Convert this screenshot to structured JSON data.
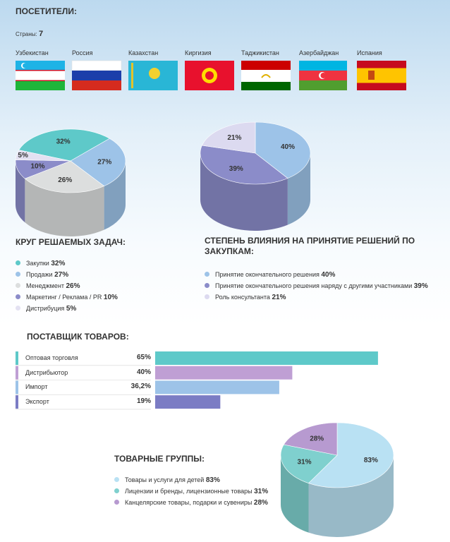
{
  "visitors": {
    "title": "ПОСЕТИТЕЛИ:",
    "countries_label": "Страны:",
    "countries_count": 7,
    "countries": [
      "Узбекистан",
      "Россия",
      "Казахстан",
      "Киргизия",
      "Таджикистан",
      "Азербайджан",
      "Испания"
    ]
  },
  "chart_data": [
    {
      "type": "pie",
      "title": "КРУГ РЕШАЕМЫХ ЗАДАЧ:",
      "categories": [
        "Закупки",
        "Продажи",
        "Менеджмент",
        "Маркетинг / Реклама / PR",
        "Дистрибуция"
      ],
      "values": [
        32,
        27,
        26,
        10,
        5
      ],
      "value_labels": [
        "32%",
        "27%",
        "26%",
        "10%",
        "5%"
      ],
      "colors": [
        "#5ec9c9",
        "#9dc3e8",
        "#dcdede",
        "#8b8cc9",
        "#e3e1f2"
      ]
    },
    {
      "type": "pie",
      "title": "СТЕПЕНЬ ВЛИЯНИЯ НА ПРИНЯТИЕ РЕШЕНИЙ ПО ЗАКУПКАМ:",
      "categories": [
        "Принятие окончательного решения",
        "Принятие окончательного решения наряду с другими участниками",
        "Роль консультанта"
      ],
      "values": [
        40,
        39,
        21
      ],
      "value_labels": [
        "40%",
        "39%",
        "21%"
      ],
      "colors": [
        "#9dc3e8",
        "#8b8cc9",
        "#dcdaf0"
      ]
    },
    {
      "type": "bar",
      "title": "ПОСТАВЩИК ТОВАРОВ:",
      "categories": [
        "Оптовая торговля",
        "Дистрибьютор",
        "Импорт",
        "Экспорт"
      ],
      "values": [
        65,
        40,
        36.2,
        19
      ],
      "value_labels": [
        "65%",
        "40%",
        "36,2%",
        "19%"
      ],
      "colors": [
        "#5ec9c9",
        "#bf9fd4",
        "#9dc3e8",
        "#7b7cc4"
      ]
    },
    {
      "type": "pie",
      "title": "ТОВАРНЫЕ ГРУППЫ:",
      "categories": [
        "Товары и услуги для детей",
        "Лицензии и бренды, лицензионные товары",
        "Канцелярские товары, подарки и сувениры"
      ],
      "values": [
        83,
        31,
        28
      ],
      "value_labels": [
        "83%",
        "31%",
        "28%"
      ],
      "colors": [
        "#b9e1f3",
        "#7fd0ce",
        "#b79ad0"
      ]
    }
  ]
}
